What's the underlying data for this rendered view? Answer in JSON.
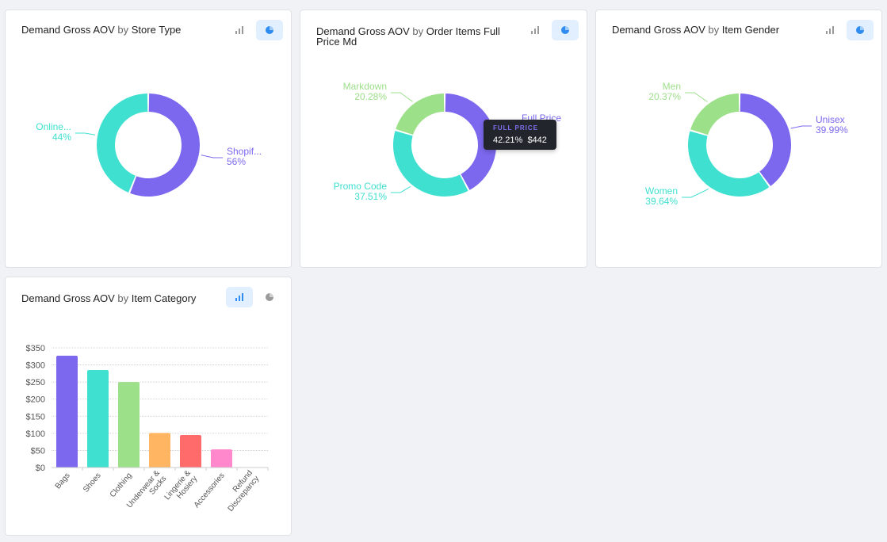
{
  "colors": {
    "purple": "#7b68ee",
    "teal": "#40e0d0",
    "green": "#9de08a",
    "orange": "#ffb561",
    "red": "#ff6b6b",
    "pink": "#ff88cc",
    "active_btn": "#e1efff",
    "active_icon": "#2f8cf0",
    "inactive_icon": "#9a9a9a"
  },
  "cards": [
    {
      "title_main": "Demand Gross AOV",
      "title_by": "by",
      "title_dim": "Store Type",
      "view": "pie",
      "bar_icon": "bar-chart-icon",
      "pie_icon": "pie-chart-icon"
    },
    {
      "title_main": "Demand Gross AOV",
      "title_by": "by",
      "title_dim": "Order Items Full",
      "title_dim2": "Price Md",
      "view": "pie",
      "bar_icon": "bar-chart-icon",
      "pie_icon": "pie-chart-icon",
      "tooltip": {
        "header": "FULL PRICE",
        "percent": "42.21%",
        "value": "$442"
      }
    },
    {
      "title_main": "Demand Gross AOV",
      "title_by": "by",
      "title_dim": "Item Gender",
      "view": "pie",
      "bar_icon": "bar-chart-icon",
      "pie_icon": "pie-chart-icon"
    },
    {
      "title_main": "Demand Gross AOV",
      "title_by": "by",
      "title_dim": "Item Category",
      "view": "bar",
      "bar_icon": "bar-chart-icon",
      "pie_icon": "pie-chart-icon"
    }
  ],
  "chart_data": [
    {
      "type": "pie",
      "donut": true,
      "slices": [
        {
          "label": "Shopif...",
          "pct_label": "56%",
          "value": 56,
          "color": "#7b68ee"
        },
        {
          "label": "Online...",
          "pct_label": "44%",
          "value": 44,
          "color": "#40e0d0"
        }
      ]
    },
    {
      "type": "pie",
      "donut": true,
      "slices": [
        {
          "label": "Full Price",
          "pct_label": "42.21%",
          "value": 42.21,
          "color": "#7b68ee"
        },
        {
          "label": "Promo Code",
          "pct_label": "37.51%",
          "value": 37.51,
          "color": "#40e0d0"
        },
        {
          "label": "Markdown",
          "pct_label": "20.28%",
          "value": 20.28,
          "color": "#9de08a"
        }
      ]
    },
    {
      "type": "pie",
      "donut": true,
      "slices": [
        {
          "label": "Unisex",
          "pct_label": "39.99%",
          "value": 39.99,
          "color": "#7b68ee"
        },
        {
          "label": "Women",
          "pct_label": "39.64%",
          "value": 39.64,
          "color": "#40e0d0"
        },
        {
          "label": "Men",
          "pct_label": "20.37%",
          "value": 20.37,
          "color": "#9de08a"
        }
      ]
    },
    {
      "type": "bar",
      "categories": [
        "Bags",
        "Shoes",
        "Clothing",
        "Underwear &\nSocks",
        "Lingerie &\nHosiery",
        "Accessories",
        "Refund\nDiscrepancy"
      ],
      "values": [
        327,
        285,
        250,
        101,
        95,
        53,
        0
      ],
      "colors": [
        "#7b68ee",
        "#40e0d0",
        "#9de08a",
        "#ffb561",
        "#ff6b6b",
        "#ff88cc",
        "#cccccc"
      ],
      "yticks": [
        "$0",
        "$50",
        "$100",
        "$150",
        "$200",
        "$250",
        "$300",
        "$350"
      ],
      "ylim": [
        0,
        350
      ],
      "grid": true
    }
  ]
}
